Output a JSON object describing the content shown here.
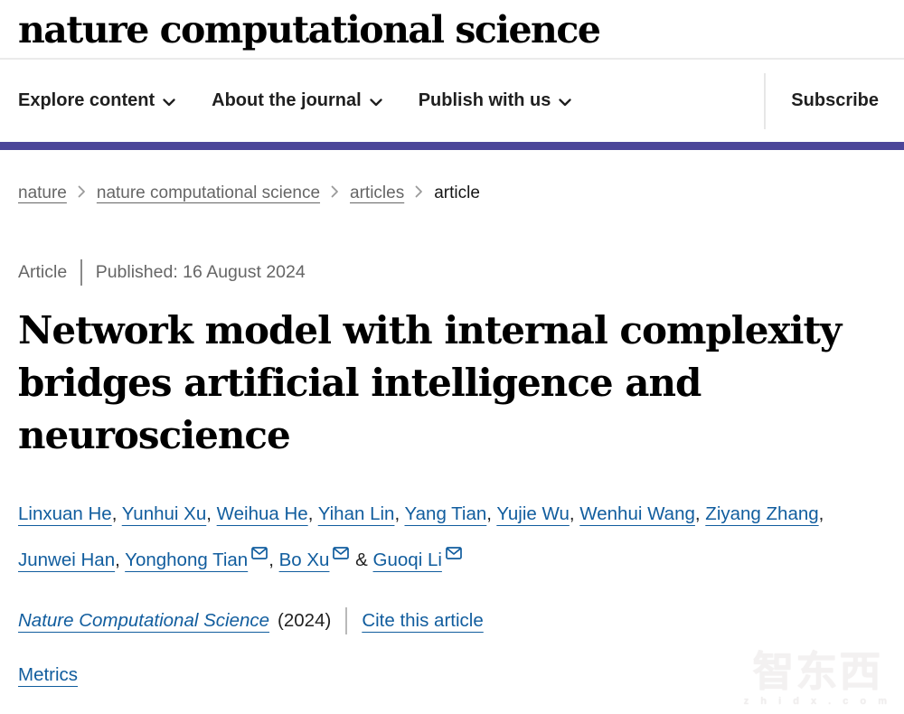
{
  "header": {
    "logo_text": "nature computational science",
    "nav_items": [
      {
        "label": "Explore content",
        "dropdown": true
      },
      {
        "label": "About the journal",
        "dropdown": true
      },
      {
        "label": "Publish with us",
        "dropdown": true
      }
    ],
    "subscribe_label": "Subscribe"
  },
  "breadcrumb": [
    {
      "label": "nature",
      "link": true
    },
    {
      "label": "nature computational science",
      "link": true
    },
    {
      "label": "articles",
      "link": true
    },
    {
      "label": "article",
      "link": false
    }
  ],
  "article": {
    "type_label": "Article",
    "published_text": "Published: 16 August 2024",
    "title": "Network model with internal complexity bridges artificial intelligence and neuroscience",
    "authors": [
      {
        "name": "Linxuan He",
        "email": false
      },
      {
        "name": "Yunhui Xu",
        "email": false
      },
      {
        "name": "Weihua He",
        "email": false
      },
      {
        "name": "Yihan Lin",
        "email": false
      },
      {
        "name": "Yang Tian",
        "email": false
      },
      {
        "name": "Yujie Wu",
        "email": false
      },
      {
        "name": "Wenhui Wang",
        "email": false
      },
      {
        "name": "Ziyang Zhang",
        "email": false
      },
      {
        "name": "Junwei Han",
        "email": false
      },
      {
        "name": "Yonghong Tian",
        "email": true
      },
      {
        "name": "Bo Xu",
        "email": true
      },
      {
        "name": "Guoqi Li",
        "email": true
      }
    ],
    "author_separator": ", ",
    "author_last_joiner": " & ",
    "journal_name": "Nature Computational Science",
    "journal_year": "(2024)",
    "cite_label": "Cite this article",
    "metrics_label": "Metrics"
  },
  "watermark": {
    "logo_text": "智东西",
    "site_text": "z h i d x . c o m"
  },
  "colors": {
    "brand_bar": "#4c4699",
    "link_blue": "#115d9e",
    "muted_text": "#666666",
    "nav_text": "#1f1f1f"
  }
}
